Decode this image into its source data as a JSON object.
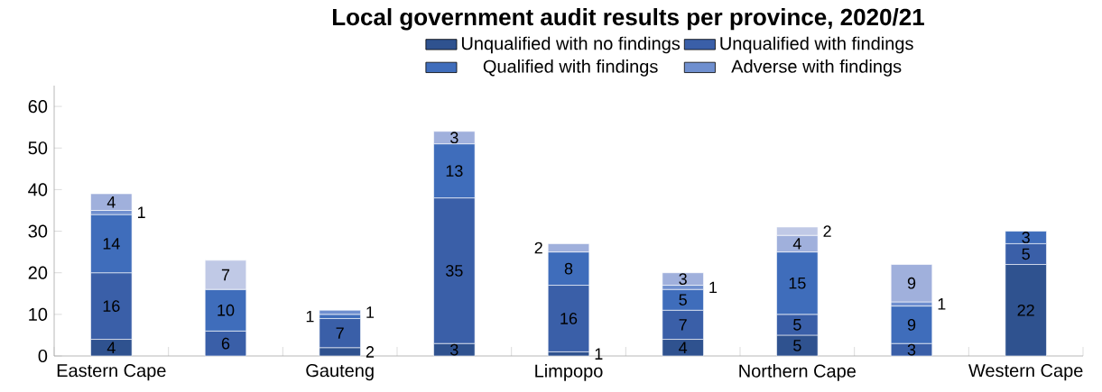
{
  "chart_data": {
    "type": "bar",
    "stacked": true,
    "title": "Local government audit results per province, 2020/21",
    "categories": [
      "Eastern Cape",
      null,
      "Gauteng",
      null,
      "Limpopo",
      null,
      "Northern Cape",
      null,
      "Western Cape"
    ],
    "series": [
      {
        "name": "Unqualified with no findings",
        "color": "#2f528f",
        "values": [
          4,
          null,
          2,
          3,
          1,
          4,
          5,
          null,
          22
        ]
      },
      {
        "name": "Unqualified with findings",
        "color": "#3a5fa8",
        "values": [
          16,
          6,
          7,
          35,
          16,
          7,
          5,
          3,
          5
        ]
      },
      {
        "name": "Qualified with findings",
        "color": "#3f6dbb",
        "values": [
          14,
          10,
          1,
          13,
          8,
          5,
          15,
          9,
          3
        ]
      },
      {
        "name": "Adverse with findings",
        "color": "#6f8fcf",
        "values": [
          1,
          null,
          1,
          null,
          null,
          1,
          null,
          1,
          null
        ]
      },
      {
        "color": "#a0b0dc",
        "values": [
          4,
          null,
          null,
          3,
          2,
          3,
          4,
          9,
          null
        ]
      },
      {
        "color": "#c0c9e6",
        "values": [
          null,
          7,
          null,
          null,
          null,
          null,
          2,
          null,
          null
        ]
      }
    ],
    "ylim": [
      0,
      65
    ],
    "yticks": [
      0,
      10,
      20,
      30,
      40,
      50,
      60
    ],
    "data_labels": true,
    "legend": "top",
    "grid": false
  }
}
